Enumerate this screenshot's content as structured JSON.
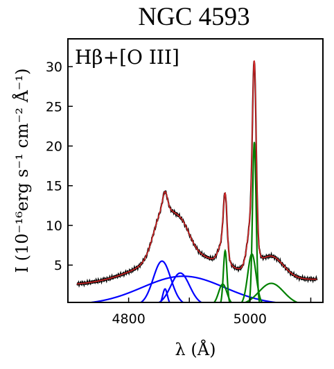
{
  "chart_data": {
    "type": "line",
    "title": "NGC 4593",
    "panel_label": "Hβ+[O III]",
    "xlabel": "λ (Å)",
    "ylabel": "I (10⁻¹⁶erg s⁻¹ cm⁻² Å⁻¹)",
    "xlim": [
      4700,
      5120
    ],
    "ylim": [
      0.3,
      33.5
    ],
    "x_ticks": [
      4800,
      4900,
      5000,
      5100
    ],
    "x_tick_labels": [
      "4800",
      "",
      "5000",
      ""
    ],
    "y_ticks": [
      5,
      10,
      15,
      20,
      25,
      30
    ],
    "y_tick_labels": [
      "5",
      "10",
      "15",
      "20",
      "25",
      "30"
    ],
    "grid": false,
    "colors": {
      "data": "#000000",
      "model": "#d62728",
      "hbeta_components": "#0000ff",
      "oiii_components": "#008000"
    },
    "continuum": {
      "x": [
        4715,
        5110
      ],
      "y": [
        2.5,
        3.2
      ]
    },
    "components": [
      {
        "group": "hbeta",
        "center": 4860,
        "fwhm": 9,
        "peak": 2.0
      },
      {
        "group": "hbeta",
        "center": 4855,
        "fwhm": 34,
        "peak": 5.5
      },
      {
        "group": "hbeta",
        "center": 4885,
        "fwhm": 36,
        "peak": 4.0
      },
      {
        "group": "hbeta",
        "center": 4890,
        "fwhm": 160,
        "peak": 3.6
      },
      {
        "group": "oiii",
        "center": 4959,
        "fwhm": 7,
        "peak": 6.8
      },
      {
        "group": "oiii",
        "center": 4955,
        "fwhm": 16,
        "peak": 2.6
      },
      {
        "group": "oiii",
        "center": 5007,
        "fwhm": 7,
        "peak": 20.5
      },
      {
        "group": "oiii",
        "center": 5003,
        "fwhm": 16,
        "peak": 6.4
      },
      {
        "group": "oiii",
        "center": 5035,
        "fwhm": 48,
        "peak": 2.7
      }
    ]
  }
}
